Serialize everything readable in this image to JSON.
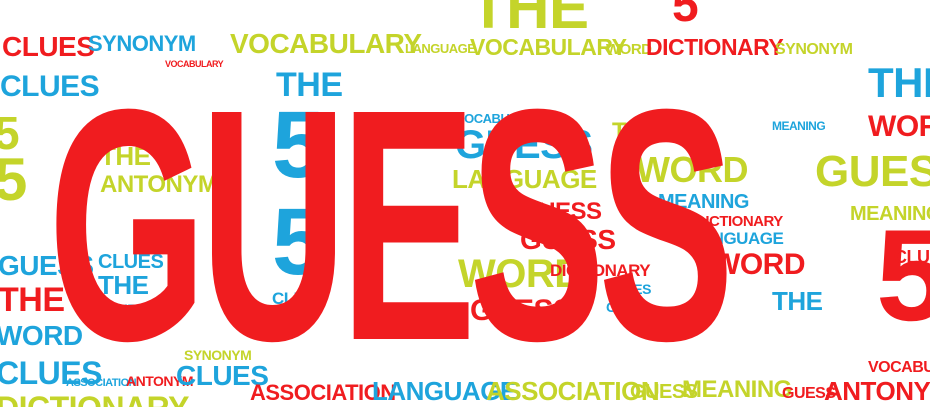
{
  "colors": {
    "red": "#f01c1f",
    "blue": "#1ea4dc",
    "yellow": "#c4d42a"
  },
  "words": {
    "hero": "GUESS",
    "w1": "CLUES",
    "w2": "SYNONYM",
    "w3": "VOCABULARY",
    "w4": "LANGUAGE",
    "w5": "VOCABULARY",
    "w6": "WORD",
    "w7": "DICTIONARY",
    "w8": "SYNONYM",
    "w9": "THE",
    "w10": "CLUES",
    "w11": "THE",
    "w12": "5",
    "w13": "5",
    "w14": "CLUES",
    "w15": "MEANING",
    "w16": "THE",
    "w17": "ANTONYM",
    "w18": "VOCABULARY",
    "w19": "GUESS",
    "w20": "LANGUAGE",
    "w21": "THE",
    "w22": "WORD",
    "w23": "MEANING",
    "w24": "DICTIONARY",
    "w25": "LANGUAGE",
    "w26": "GUESS",
    "w27": "GUESS",
    "w28": "WORD",
    "w29": "DICTIONARY",
    "w30": "CLUES",
    "w31": "CLUES",
    "w32": "WORD",
    "w33": "GUESS",
    "w34": "THE",
    "w35": "WORD",
    "w36": "GUESS",
    "w37": "MEANING",
    "w38": "THE",
    "w39": "5",
    "w40": "CLUES",
    "w41": "THE",
    "w42": "CLUES",
    "w43": "GUESS",
    "w44": "THE",
    "w45": "WORD",
    "w46": "CLUES",
    "w47": "ANTONYM",
    "w48": "CLUES",
    "w49": "ASSOCIATION",
    "w50": "LANGUAGE",
    "w51": "ASSOCIATION",
    "w52": "GUESS",
    "w53": "MEANING",
    "w54": "GUESS",
    "w55": "ANTONYM",
    "w56": "5",
    "w57": "CLUES",
    "w58": "VOCABULARY",
    "w59": "DICTIONARY",
    "w60": "5",
    "w61": "MEANING",
    "w62": "SYNONYM"
  }
}
